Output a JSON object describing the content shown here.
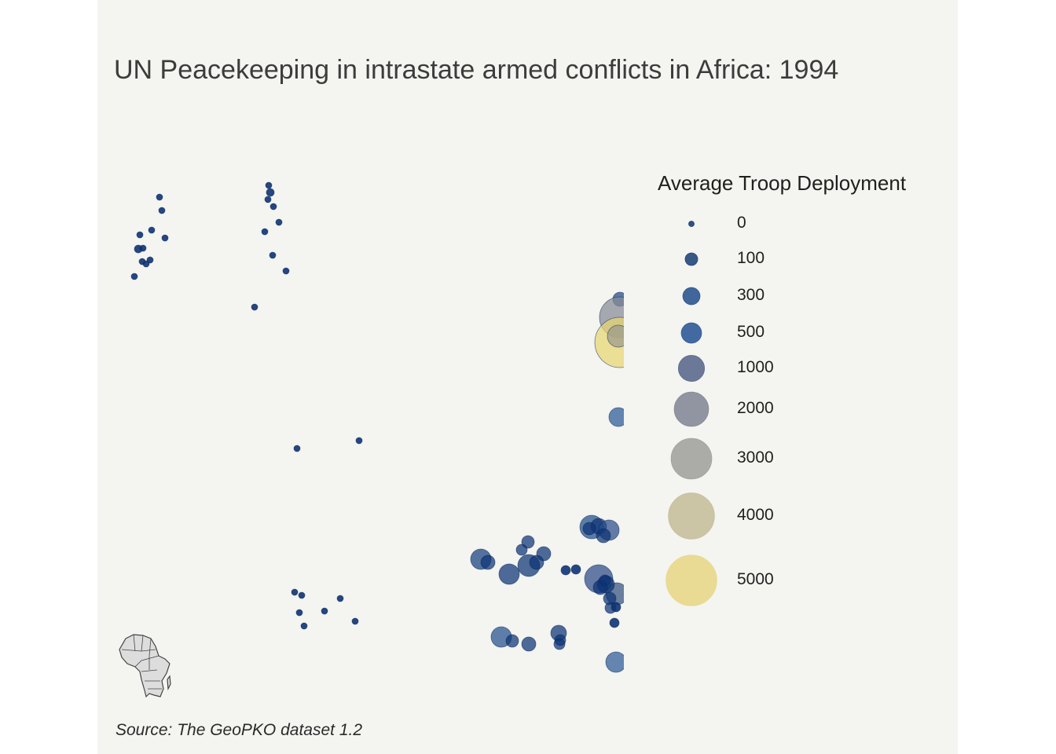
{
  "title": "UN Peacekeeping in intrastate armed conflicts in Africa: 1994",
  "source": "Source: The GeoPKO dataset 1.2",
  "legend": {
    "title": "Average Troop Deployment",
    "items": [
      {
        "label": "0",
        "value": 0,
        "color": "#1c3f73"
      },
      {
        "label": "100",
        "value": 100,
        "color": "#24477a"
      },
      {
        "label": "300",
        "value": 300,
        "color": "#2c5690"
      },
      {
        "label": "500",
        "value": 500,
        "color": "#2f5b98"
      },
      {
        "label": "1000",
        "value": 1000,
        "color": "#5c6a8e"
      },
      {
        "label": "2000",
        "value": 2000,
        "color": "#868b98"
      },
      {
        "label": "3000",
        "value": 3000,
        "color": "#a3a39e"
      },
      {
        "label": "4000",
        "value": 4000,
        "color": "#c6bf9c"
      },
      {
        "label": "5000",
        "value": 5000,
        "color": "#e8d888"
      }
    ]
  },
  "colors": {
    "background": "#f4f4f0",
    "low": "#0b2c66",
    "high": "#e8d672"
  },
  "inset_map": "africa-outline-icon"
}
